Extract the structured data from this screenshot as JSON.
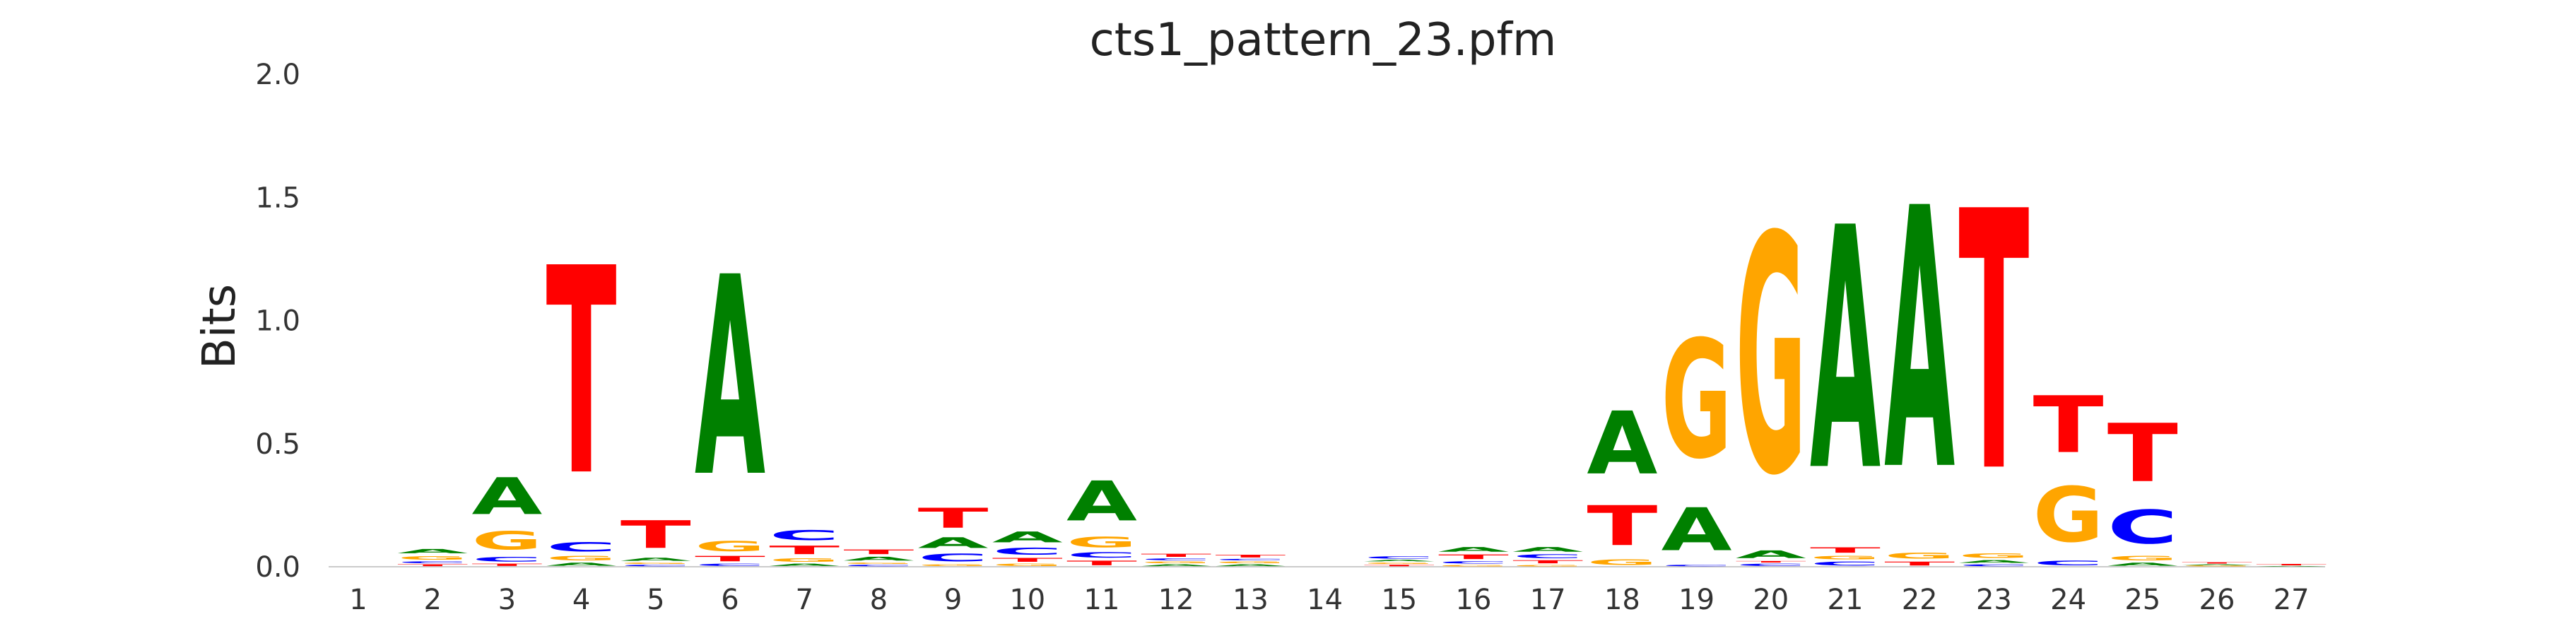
{
  "chart_data": {
    "type": "sequence-logo",
    "title": "cts1_pattern_23.pfm",
    "ylabel": "Bits",
    "xlabel": "",
    "ylim": [
      0,
      2.0
    ],
    "yticks": [
      "0.0",
      "0.5",
      "1.0",
      "1.5",
      "2.0"
    ],
    "categories": [
      "1",
      "2",
      "3",
      "4",
      "5",
      "6",
      "7",
      "8",
      "9",
      "10",
      "11",
      "12",
      "13",
      "14",
      "15",
      "16",
      "17",
      "18",
      "19",
      "20",
      "21",
      "22",
      "23",
      "24",
      "25",
      "26",
      "27"
    ],
    "letter_colors": {
      "A": "#008000",
      "C": "#0000ff",
      "G": "#ffa500",
      "T": "#ff0000"
    },
    "positions": [
      {
        "pos": 1,
        "stack": []
      },
      {
        "pos": 2,
        "stack": [
          [
            "T",
            0.012
          ],
          [
            "C",
            0.012
          ],
          [
            "G",
            0.025
          ],
          [
            "A",
            0.028
          ]
        ]
      },
      {
        "pos": 3,
        "stack": [
          [
            "T",
            0.015
          ],
          [
            "C",
            0.03
          ],
          [
            "G",
            0.12
          ],
          [
            "A",
            0.24
          ]
        ]
      },
      {
        "pos": 4,
        "stack": [
          [
            "A",
            0.02
          ],
          [
            "G",
            0.03
          ],
          [
            "C",
            0.06
          ],
          [
            "T",
            1.35
          ]
        ]
      },
      {
        "pos": 5,
        "stack": [
          [
            "C",
            0.01
          ],
          [
            "G",
            0.01
          ],
          [
            "A",
            0.02
          ],
          [
            "T",
            0.18
          ]
        ]
      },
      {
        "pos": 6,
        "stack": [
          [
            "C",
            0.015
          ],
          [
            "T",
            0.035
          ],
          [
            "G",
            0.065
          ],
          [
            "A",
            1.3
          ]
        ]
      },
      {
        "pos": 7,
        "stack": [
          [
            "A",
            0.015
          ],
          [
            "G",
            0.025
          ],
          [
            "T",
            0.055
          ],
          [
            "C",
            0.065
          ]
        ]
      },
      {
        "pos": 8,
        "stack": [
          [
            "C",
            0.01
          ],
          [
            "G",
            0.01
          ],
          [
            "A",
            0.025
          ],
          [
            "T",
            0.03
          ]
        ]
      },
      {
        "pos": 9,
        "stack": [
          [
            "G",
            0.012
          ],
          [
            "C",
            0.05
          ],
          [
            "A",
            0.07
          ],
          [
            "T",
            0.13
          ]
        ]
      },
      {
        "pos": 10,
        "stack": [
          [
            "G",
            0.015
          ],
          [
            "T",
            0.025
          ],
          [
            "C",
            0.045
          ],
          [
            "A",
            0.07
          ]
        ]
      },
      {
        "pos": 11,
        "stack": [
          [
            "T",
            0.03
          ],
          [
            "C",
            0.035
          ],
          [
            "G",
            0.07
          ],
          [
            "A",
            0.26
          ]
        ]
      },
      {
        "pos": 12,
        "stack": [
          [
            "A",
            0.012
          ],
          [
            "G",
            0.012
          ],
          [
            "C",
            0.012
          ],
          [
            "T",
            0.02
          ]
        ]
      },
      {
        "pos": 13,
        "stack": [
          [
            "A",
            0.012
          ],
          [
            "G",
            0.012
          ],
          [
            "C",
            0.01
          ],
          [
            "T",
            0.018
          ]
        ]
      },
      {
        "pos": 14,
        "stack": []
      },
      {
        "pos": 15,
        "stack": [
          [
            "T",
            0.01
          ],
          [
            "G",
            0.01
          ],
          [
            "A",
            0.01
          ],
          [
            "C",
            0.015
          ]
        ]
      },
      {
        "pos": 16,
        "stack": [
          [
            "G",
            0.01
          ],
          [
            "C",
            0.015
          ],
          [
            "T",
            0.03
          ],
          [
            "A",
            0.03
          ]
        ]
      },
      {
        "pos": 17,
        "stack": [
          [
            "G",
            0.01
          ],
          [
            "T",
            0.02
          ],
          [
            "C",
            0.025
          ],
          [
            "A",
            0.03
          ]
        ]
      },
      {
        "pos": 18,
        "stack": [
          [
            "G",
            0.035
          ],
          [
            "T",
            0.26
          ],
          [
            "A",
            0.41
          ]
        ]
      },
      {
        "pos": 19,
        "stack": [
          [
            "C",
            0.01
          ],
          [
            "A",
            0.28
          ],
          [
            "G",
            0.77
          ]
        ]
      },
      {
        "pos": 20,
        "stack": [
          [
            "C",
            0.015
          ],
          [
            "T",
            0.01
          ],
          [
            "A",
            0.05
          ],
          [
            "G",
            1.55
          ]
        ]
      },
      {
        "pos": 21,
        "stack": [
          [
            "C",
            0.025
          ],
          [
            "G",
            0.025
          ],
          [
            "T",
            0.035
          ],
          [
            "A",
            1.58
          ]
        ]
      },
      {
        "pos": 22,
        "stack": [
          [
            "T",
            0.025
          ],
          [
            "G",
            0.04
          ],
          [
            "A",
            1.7
          ]
        ]
      },
      {
        "pos": 23,
        "stack": [
          [
            "C",
            0.012
          ],
          [
            "A",
            0.018
          ],
          [
            "G",
            0.03
          ],
          [
            "T",
            1.69
          ]
        ]
      },
      {
        "pos": 24,
        "stack": [
          [
            "C",
            0.03
          ],
          [
            "G",
            0.36
          ],
          [
            "T",
            0.37
          ]
        ]
      },
      {
        "pos": 25,
        "stack": [
          [
            "A",
            0.02
          ],
          [
            "G",
            0.03
          ],
          [
            "C",
            0.22
          ],
          [
            "T",
            0.38
          ]
        ]
      },
      {
        "pos": 26,
        "stack": [
          [
            "G",
            0.005
          ],
          [
            "A",
            0.006
          ],
          [
            "T",
            0.009
          ]
        ]
      },
      {
        "pos": 27,
        "stack": [
          [
            "A",
            0.004
          ],
          [
            "T",
            0.009
          ]
        ]
      }
    ]
  }
}
